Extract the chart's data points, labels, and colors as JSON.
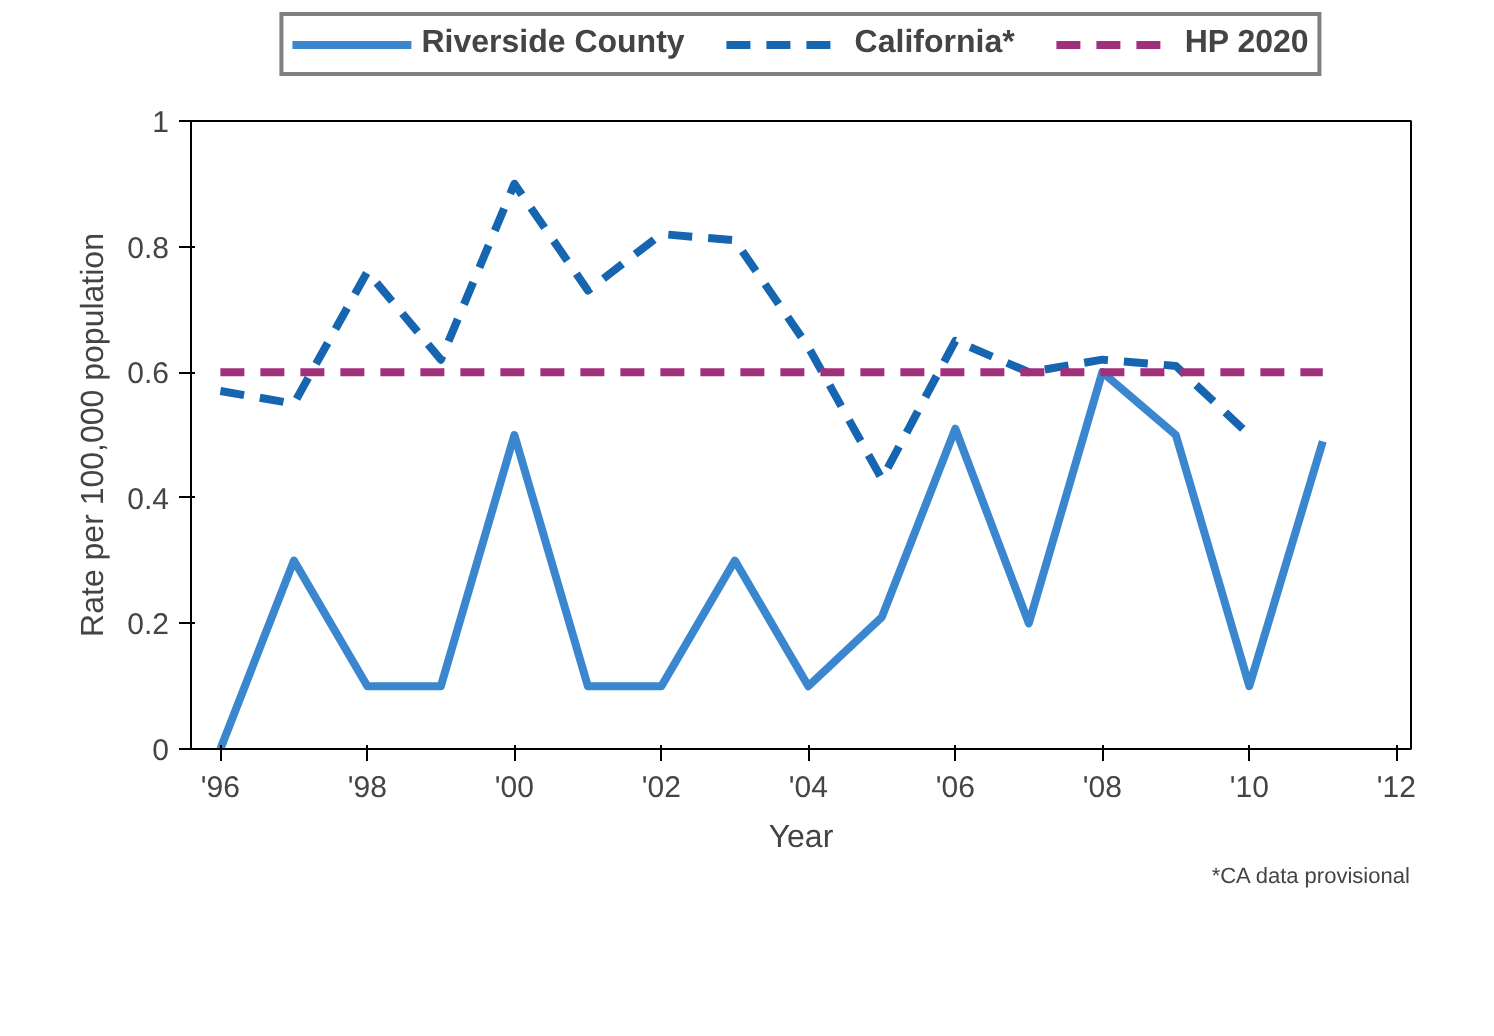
{
  "chart_data": {
    "type": "line",
    "xlabel": "Year",
    "ylabel": "Rate per 100,000 population",
    "x": [
      1996,
      1997,
      1998,
      1999,
      2000,
      2001,
      2002,
      2003,
      2004,
      2005,
      2006,
      2007,
      2008,
      2009,
      2010,
      2011
    ],
    "series": [
      {
        "name": "Riverside County",
        "color": "#3a87cf",
        "line_style": "solid",
        "values": [
          0,
          0.3,
          0.1,
          0.1,
          0.5,
          0.1,
          0.1,
          0.3,
          0.1,
          0.21,
          0.51,
          0.2,
          0.6,
          0.5,
          0.1,
          0.49
        ]
      },
      {
        "name": "California*",
        "color": "#1565b0",
        "line_style": "dashed",
        "values": [
          0.57,
          0.55,
          0.76,
          0.62,
          0.9,
          0.73,
          0.82,
          0.81,
          0.64,
          0.43,
          0.65,
          0.6,
          0.62,
          0.61,
          0.5,
          null
        ]
      },
      {
        "name": "HP 2020",
        "color": "#a0307a",
        "line_style": "dashed",
        "values": [
          0.6,
          0.6,
          0.6,
          0.6,
          0.6,
          0.6,
          0.6,
          0.6,
          0.6,
          0.6,
          0.6,
          0.6,
          0.6,
          0.6,
          0.6,
          0.6
        ]
      }
    ],
    "xlim": [
      1995.6,
      2012.2
    ],
    "xticks": [
      {
        "value": 1996,
        "label": "'96"
      },
      {
        "value": 1998,
        "label": "'98"
      },
      {
        "value": 2000,
        "label": "'00"
      },
      {
        "value": 2002,
        "label": "'02"
      },
      {
        "value": 2004,
        "label": "'04"
      },
      {
        "value": 2006,
        "label": "'06"
      },
      {
        "value": 2008,
        "label": "'08"
      },
      {
        "value": 2010,
        "label": "'10"
      },
      {
        "value": 2012,
        "label": "'12"
      }
    ],
    "ylim": [
      0,
      1
    ],
    "yticks": [
      0,
      {
        "value": 0.2,
        "label": "0.2"
      },
      {
        "value": 0.4,
        "label": "0.4"
      },
      {
        "value": 0.6,
        "label": "0.6"
      },
      {
        "value": 0.8,
        "label": "0.8"
      },
      1
    ],
    "grid": false,
    "legend": "top",
    "marker": "none",
    "annotations": [
      "*CA data provisional"
    ]
  }
}
